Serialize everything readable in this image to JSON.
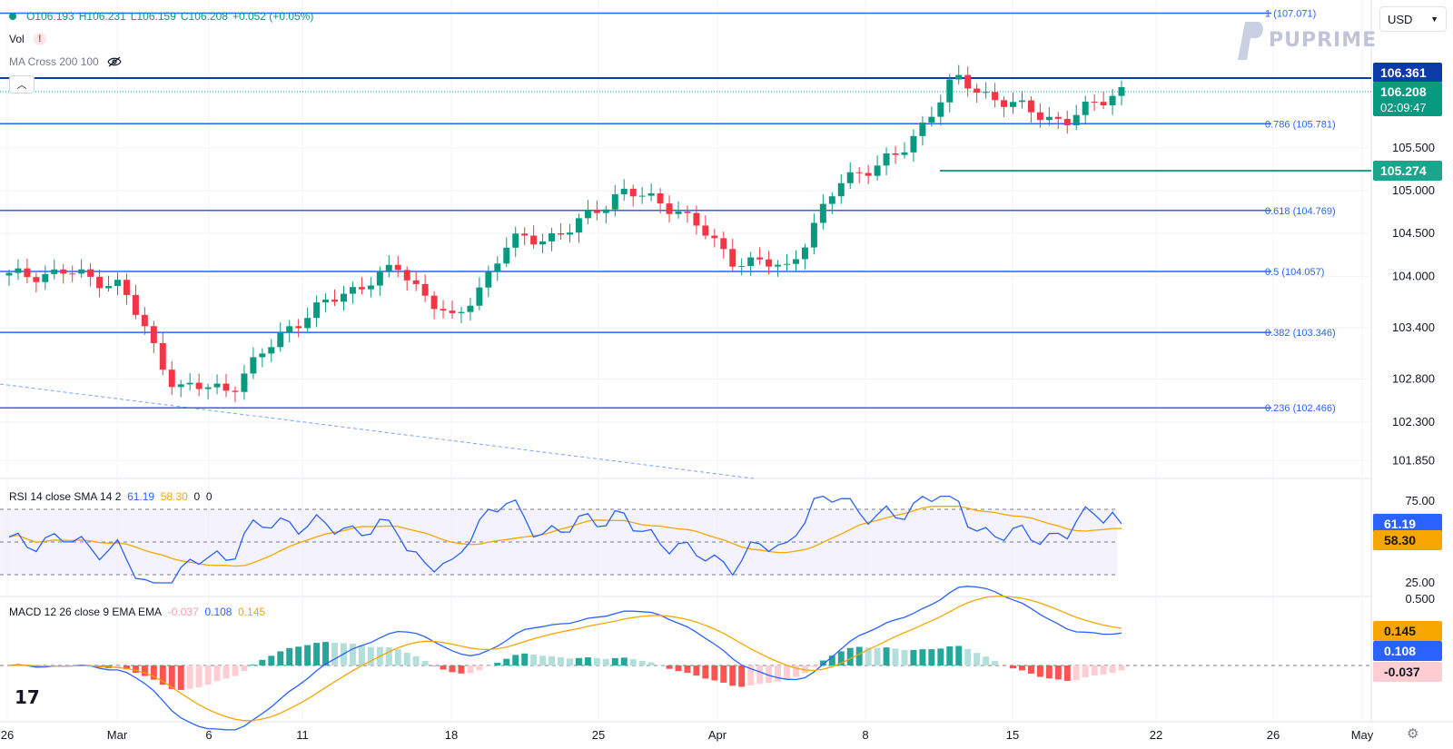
{
  "header": {
    "ohlc": [
      {
        "label": "O",
        "value": "106.193"
      },
      {
        "label": "H",
        "value": "106.231"
      },
      {
        "label": "L",
        "value": "106.159"
      },
      {
        "label": "C",
        "value": "106.208"
      }
    ],
    "change": "+0.052 (+0.05%)",
    "vol_label": "Vol",
    "vol_warning": "!",
    "ma_label": "MA Cross 200 100",
    "collapse_icon": "chevron-up",
    "currency": "USD",
    "currency_icon": "chevron-down",
    "logo_text": "PUPRIME",
    "tv_logo": "17"
  },
  "colors": {
    "up": "#089981",
    "down": "#f23645",
    "fib": "#2962ff",
    "rsi": "#2962ff",
    "rsi_sma": "#f7a600",
    "bg": "#ffffff",
    "grid": "#f0f3fa"
  },
  "chart_data": [
    {
      "type": "candlestick",
      "title": "",
      "y_ticks": [
        "101.850",
        "102.300",
        "102.800",
        "103.400",
        "104.000",
        "104.500",
        "105.000",
        "105.500"
      ],
      "x_ticks": [
        "26",
        "Mar",
        "6",
        "11",
        "18",
        "25",
        "Apr",
        "8",
        "15",
        "22",
        "26",
        "May"
      ],
      "fib_levels": [
        {
          "ratio": "1",
          "value": 107.071,
          "label": "1 (107.071)"
        },
        {
          "ratio": "0.786",
          "value": 105.781,
          "label": "0.786 (105.781)"
        },
        {
          "ratio": "0.618",
          "value": 104.769,
          "label": "0.618 (104.769)"
        },
        {
          "ratio": "0.5",
          "value": 104.057,
          "label": "0.5 (104.057)"
        },
        {
          "ratio": "0.382",
          "value": 103.346,
          "label": "0.382 (103.346)"
        },
        {
          "ratio": "0.236",
          "value": 102.466,
          "label": "0.236 (102.466)"
        }
      ],
      "price_labels": [
        {
          "value": "106.361",
          "color": "#0c3aa6"
        },
        {
          "value": "106.208",
          "sub": "02:09:47",
          "color": "#089981"
        },
        {
          "value": "105.274",
          "color": "#1aa68c"
        }
      ],
      "key_points": [
        {
          "date": "Feb 26",
          "close": 104.0
        },
        {
          "date": "Mar 1",
          "close": 104.05
        },
        {
          "date": "Mar 4",
          "close": 103.9
        },
        {
          "date": "Mar 8",
          "close": 102.7
        },
        {
          "date": "Mar 11",
          "close": 102.7
        },
        {
          "date": "Mar 15",
          "close": 103.4
        },
        {
          "date": "Mar 19",
          "close": 103.8
        },
        {
          "date": "Mar 21",
          "close": 104.1
        },
        {
          "date": "Mar 22",
          "close": 103.45
        },
        {
          "date": "Mar 25",
          "close": 104.4
        },
        {
          "date": "Mar 28",
          "close": 104.5
        },
        {
          "date": "Apr 2",
          "close": 105.0
        },
        {
          "date": "Apr 4",
          "close": 104.8
        },
        {
          "date": "Apr 5",
          "close": 104.2
        },
        {
          "date": "Apr 9",
          "close": 104.1
        },
        {
          "date": "Apr 10",
          "close": 105.15
        },
        {
          "date": "Apr 12",
          "close": 105.4
        },
        {
          "date": "Apr 16",
          "close": 106.3
        },
        {
          "date": "Apr 18",
          "close": 106.0
        },
        {
          "date": "Apr 19",
          "close": 105.8
        },
        {
          "date": "Apr 20",
          "close": 106.208
        }
      ]
    },
    {
      "type": "line",
      "title": "RSI 14 close SMA 14 2",
      "y_ticks": [
        "75.00",
        "25.00"
      ],
      "series": [
        {
          "name": "RSI",
          "value_label": "61.19"
        },
        {
          "name": "SMA",
          "value_label": "58.30"
        }
      ],
      "extra_values": [
        "0",
        "0"
      ],
      "bands": [
        70,
        50,
        30
      ]
    },
    {
      "type": "bar",
      "title": "MACD 12 26 close 9 EMA EMA",
      "y_ticks": [
        "0.500"
      ],
      "values": {
        "histogram": "-0.037",
        "macd": "0.108",
        "signal": "0.145"
      }
    }
  ]
}
